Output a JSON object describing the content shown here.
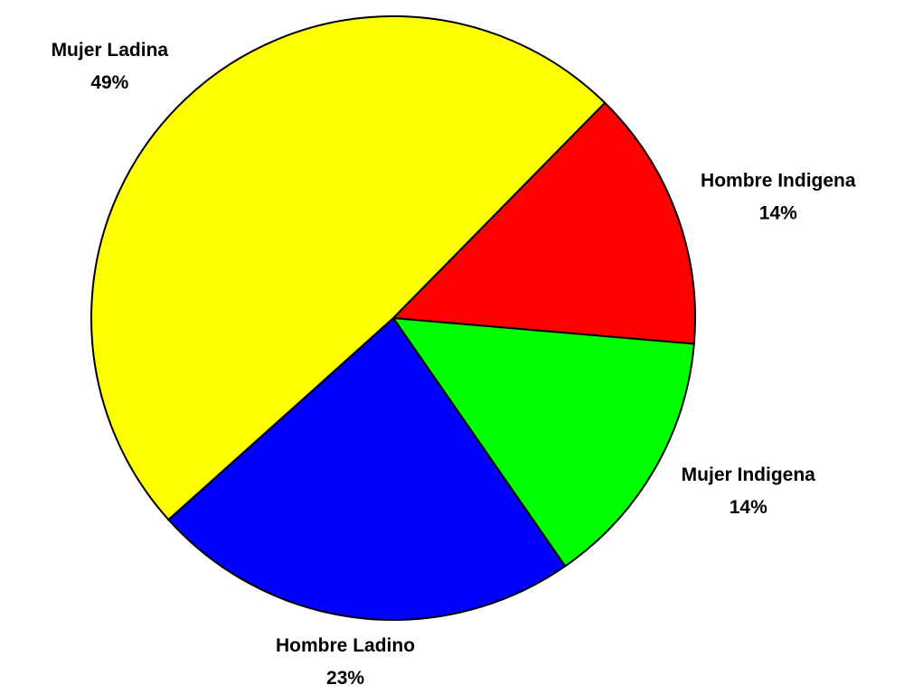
{
  "chart_data": {
    "type": "pie",
    "categories": [
      "Hombre Indigena",
      "Mujer Indigena",
      "Hombre Ladino",
      "Mujer Ladina"
    ],
    "values": [
      14,
      14,
      23,
      49
    ],
    "value_labels": [
      "14%",
      "14%",
      "23%",
      "49%"
    ],
    "colors": [
      "#ff0000",
      "#00ff00",
      "#0000ff",
      "#ffff00"
    ]
  }
}
